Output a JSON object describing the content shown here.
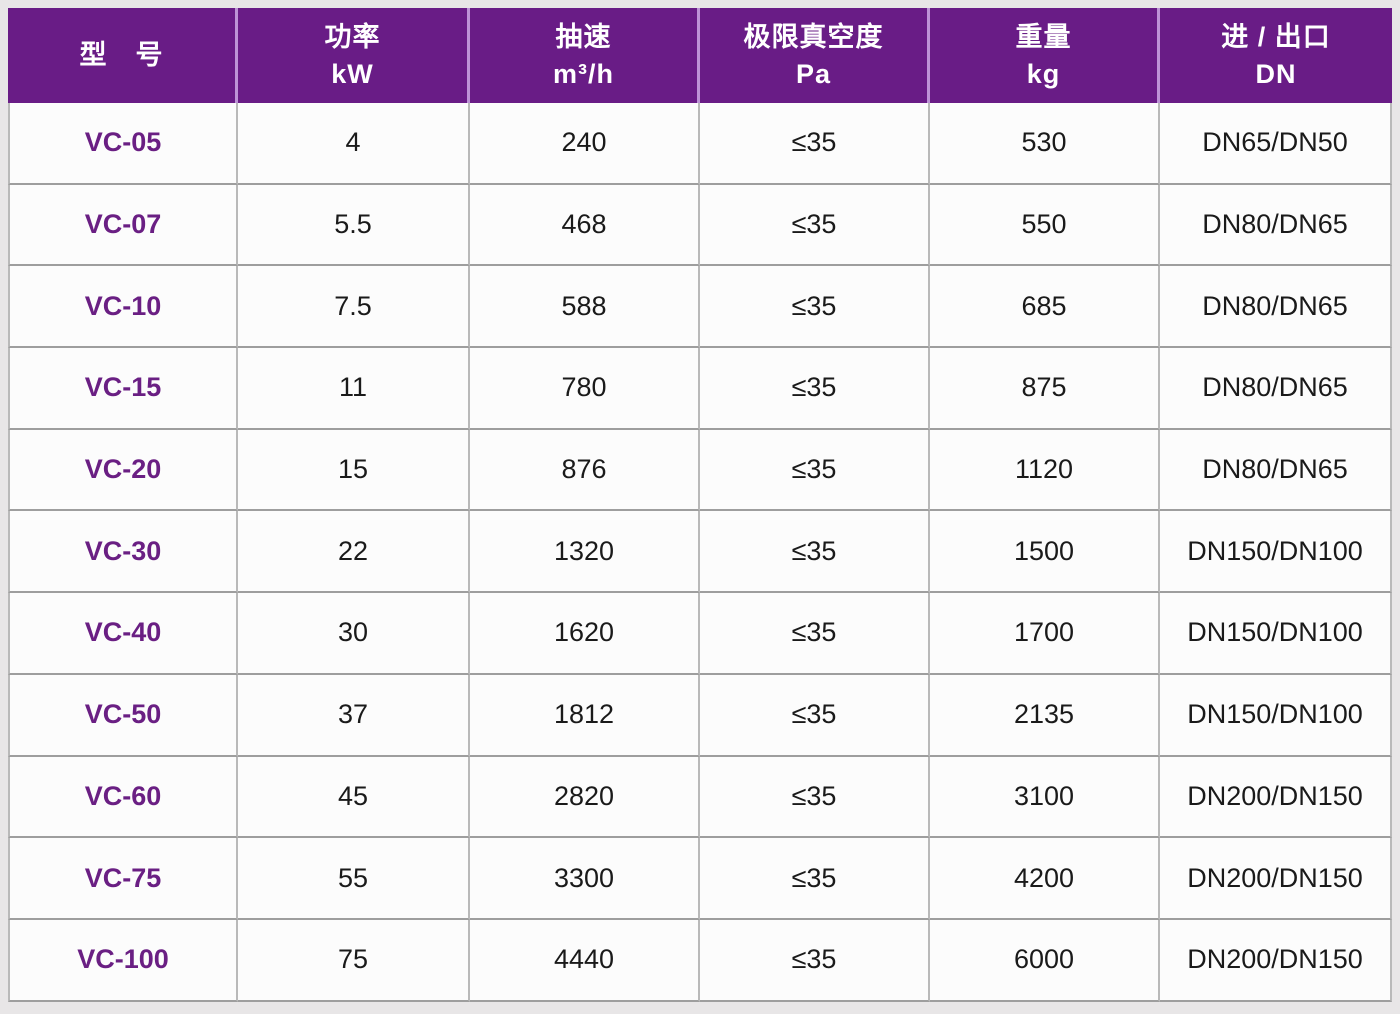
{
  "colors": {
    "header_bg": "#691C86",
    "header_divider": "#BD93D6",
    "model_text": "#6A1F83",
    "body_text": "#1A1A1A",
    "row_line": "#9E9E9E",
    "col_line": "#B9B9B9",
    "page_bg": "#E8E6E7",
    "cell_bg": "#FCFCFC"
  },
  "table": {
    "columns": [
      {
        "title": "型　号",
        "unit": ""
      },
      {
        "title": "功率",
        "unit": "kW"
      },
      {
        "title": "抽速",
        "unit": "m³/h"
      },
      {
        "title": "极限真空度",
        "unit": "Pa"
      },
      {
        "title": "重量",
        "unit": "kg"
      },
      {
        "title": "进 / 出口",
        "unit": "DN"
      }
    ],
    "rows": [
      [
        "VC-05",
        "4",
        "240",
        "≤35",
        "530",
        "DN65/DN50"
      ],
      [
        "VC-07",
        "5.5",
        "468",
        "≤35",
        "550",
        "DN80/DN65"
      ],
      [
        "VC-10",
        "7.5",
        "588",
        "≤35",
        "685",
        "DN80/DN65"
      ],
      [
        "VC-15",
        "11",
        "780",
        "≤35",
        "875",
        "DN80/DN65"
      ],
      [
        "VC-20",
        "15",
        "876",
        "≤35",
        "1120",
        "DN80/DN65"
      ],
      [
        "VC-30",
        "22",
        "1320",
        "≤35",
        "1500",
        "DN150/DN100"
      ],
      [
        "VC-40",
        "30",
        "1620",
        "≤35",
        "1700",
        "DN150/DN100"
      ],
      [
        "VC-50",
        "37",
        "1812",
        "≤35",
        "2135",
        "DN150/DN100"
      ],
      [
        "VC-60",
        "45",
        "2820",
        "≤35",
        "3100",
        "DN200/DN150"
      ],
      [
        "VC-75",
        "55",
        "3300",
        "≤35",
        "4200",
        "DN200/DN150"
      ],
      [
        "VC-100",
        "75",
        "4440",
        "≤35",
        "6000",
        "DN200/DN150"
      ]
    ]
  }
}
